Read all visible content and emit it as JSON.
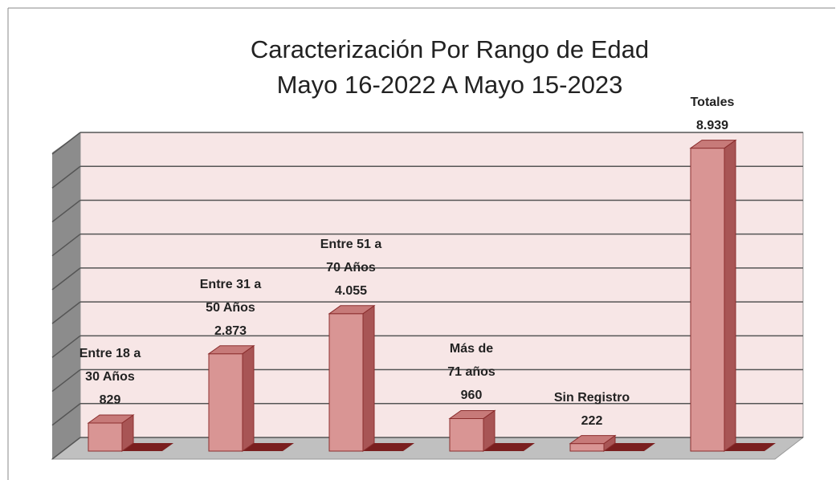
{
  "chart_data": {
    "type": "bar3d",
    "title": "Caracterización Por Rango de Edad\nMayo 16-2022 A Mayo 15-2023",
    "categories": [
      "Entre 18 a\n30 Años",
      "Entre 31 a\n50 Años",
      "Entre 51 a\n70 Años",
      "Más de\n71 años",
      "Sin Registro",
      "Totales"
    ],
    "values": [
      829,
      2873,
      4055,
      960,
      222,
      8939
    ],
    "value_labels": [
      "829",
      "2.873",
      "4.055",
      "960",
      "222",
      "8.939"
    ],
    "color": "#d99594",
    "ylim": [
      0,
      9000
    ],
    "yticks": [
      0,
      1000,
      2000,
      3000,
      4000,
      5000,
      6000,
      7000,
      8000,
      9000
    ],
    "grid": true
  }
}
